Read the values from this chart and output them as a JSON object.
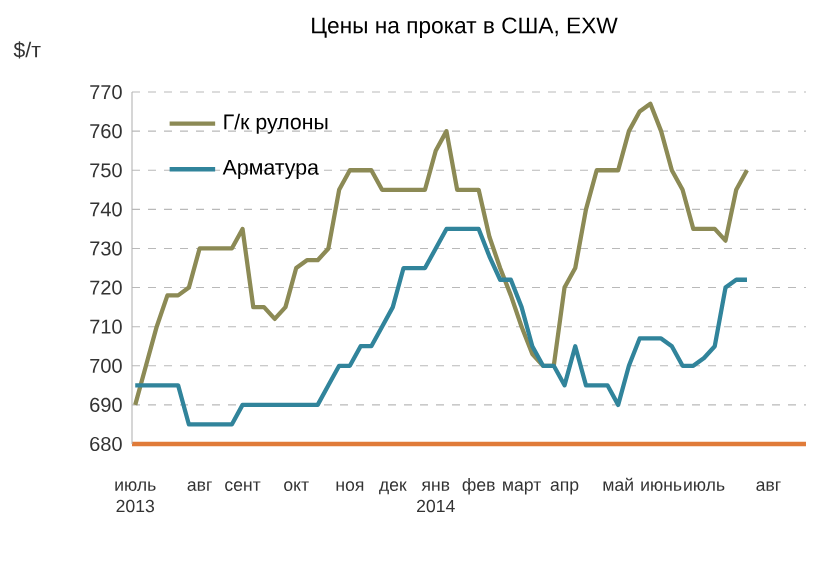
{
  "chart_data": {
    "type": "line",
    "title": "Цены на прокат в США, EXW",
    "ylabel": "$/т",
    "categories": [
      "июль 2013",
      null,
      null,
      null,
      null,
      null,
      "авг",
      null,
      null,
      null,
      "сент",
      null,
      null,
      null,
      null,
      "окт",
      null,
      null,
      null,
      null,
      "ноя",
      null,
      null,
      null,
      "дек",
      null,
      null,
      null,
      "янв 2014",
      null,
      null,
      null,
      "фев",
      null,
      null,
      null,
      "март",
      null,
      null,
      null,
      "апр",
      null,
      null,
      null,
      null,
      "май",
      null,
      null,
      null,
      "июнь",
      null,
      null,
      null,
      "июль",
      null,
      null,
      null,
      null,
      null,
      "авг",
      null,
      null,
      null
    ],
    "series": [
      {
        "name": "Г/к рулоны",
        "color": "#8c8a55",
        "values": [
          690,
          700,
          710,
          718,
          718,
          720,
          730,
          730,
          730,
          730,
          735,
          715,
          715,
          712,
          715,
          725,
          727,
          727,
          730,
          745,
          750,
          750,
          750,
          745,
          745,
          745,
          745,
          745,
          755,
          760,
          745,
          745,
          745,
          733,
          725,
          718,
          710,
          703,
          700,
          700,
          720,
          725,
          740,
          750,
          750,
          750,
          760,
          765,
          767,
          760,
          750,
          745,
          735,
          735,
          735,
          732,
          745,
          750,
          null,
          null,
          null,
          null,
          null
        ]
      },
      {
        "name": "Арматура",
        "color": "#31849b",
        "values": [
          695,
          695,
          695,
          695,
          695,
          685,
          685,
          685,
          685,
          685,
          690,
          690,
          690,
          690,
          690,
          690,
          690,
          690,
          695,
          700,
          700,
          705,
          705,
          710,
          715,
          725,
          725,
          725,
          730,
          735,
          735,
          735,
          735,
          728,
          722,
          722,
          715,
          705,
          700,
          700,
          695,
          705,
          695,
          695,
          695,
          690,
          700,
          707,
          707,
          707,
          705,
          700,
          700,
          702,
          705,
          720,
          722,
          722,
          null,
          null,
          null,
          null,
          null
        ]
      }
    ],
    "ylim": [
      680,
      770
    ],
    "yticks": [
      680,
      690,
      700,
      710,
      720,
      730,
      740,
      750,
      760,
      770
    ],
    "grid": "y",
    "legend": "top left",
    "marker": "none",
    "line_style": "solid"
  }
}
